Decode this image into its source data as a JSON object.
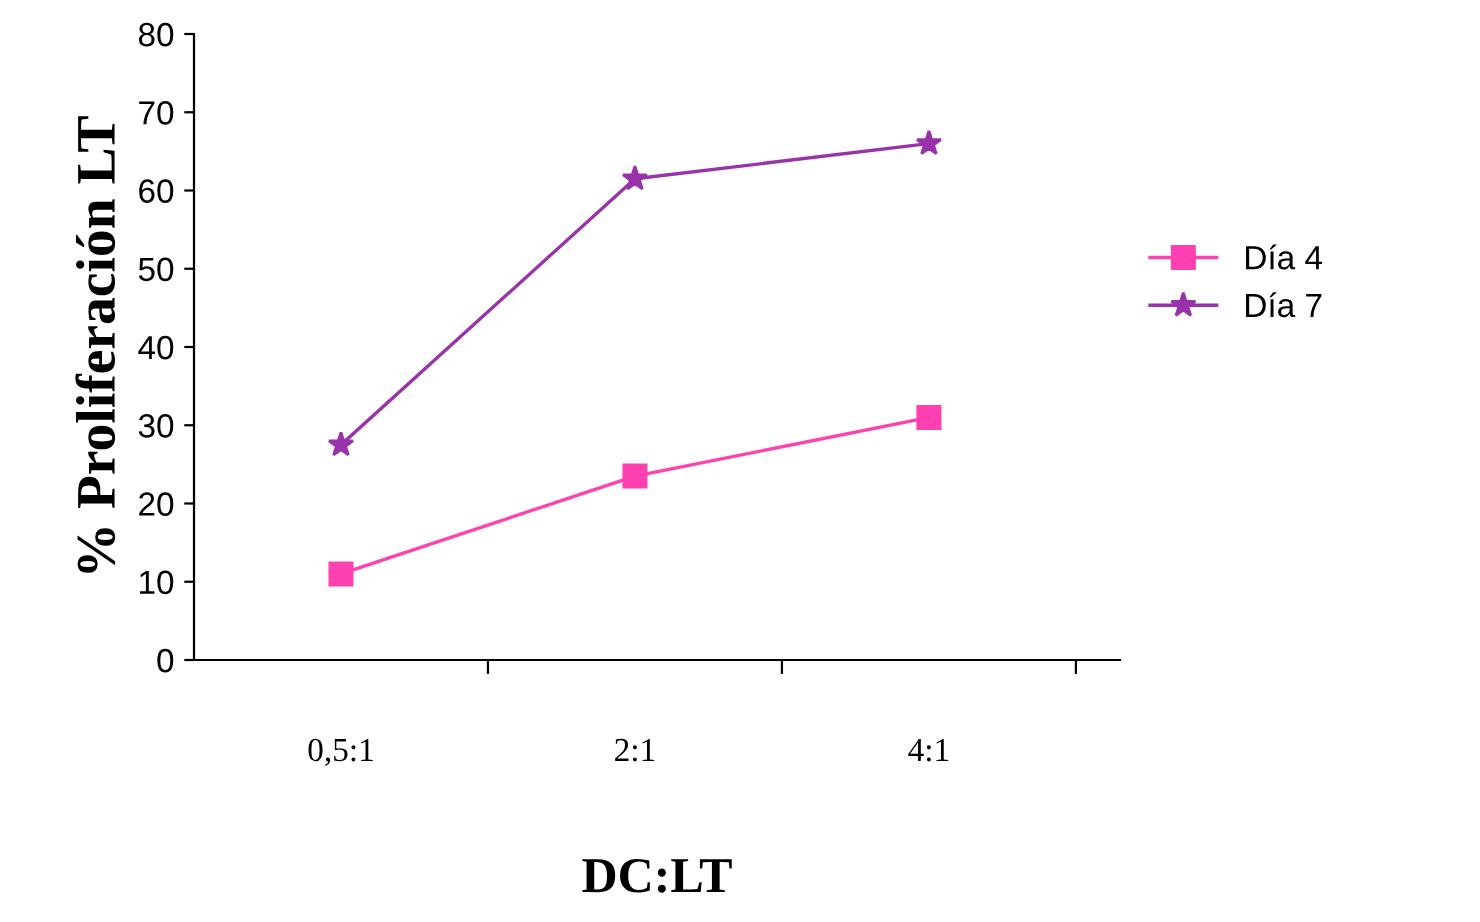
{
  "chart_data": {
    "type": "line",
    "xlabel": "DC:LT",
    "ylabel": "% Proliferación LT",
    "categories": [
      "0,5:1",
      "2:1",
      "4:1"
    ],
    "series": [
      {
        "name": "Día 4",
        "color": "#ff40b0",
        "values": [
          11,
          23.5,
          31
        ],
        "marker": "square"
      },
      {
        "name": "Día 7",
        "color": "#9933aa",
        "values": [
          27.5,
          61.5,
          66
        ],
        "marker": "star"
      }
    ],
    "ylim": [
      0,
      80
    ],
    "yticks": [
      0,
      10,
      20,
      30,
      40,
      50,
      60,
      70,
      80
    ],
    "grid": false,
    "legend": "right",
    "line_style": "solid"
  }
}
